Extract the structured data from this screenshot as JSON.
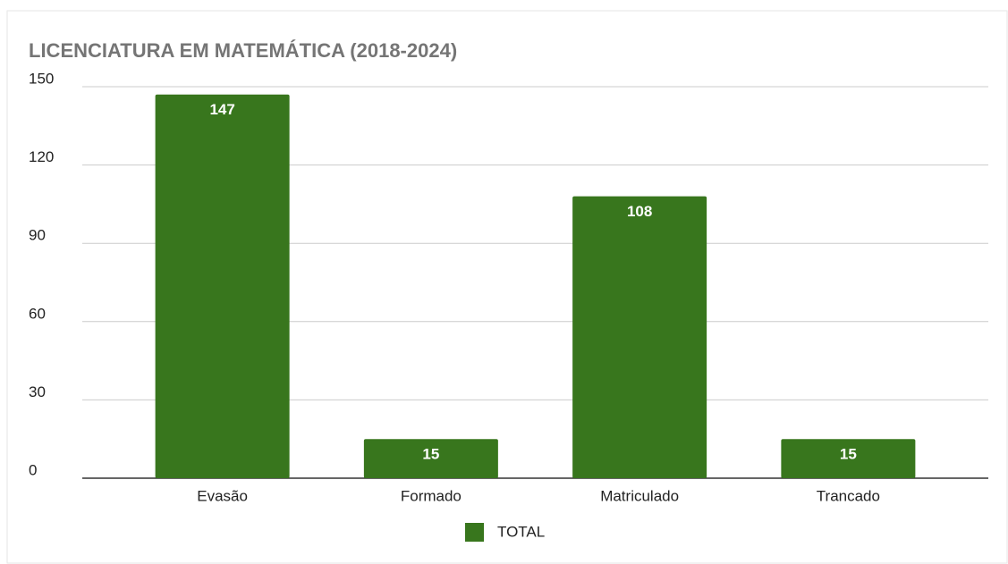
{
  "chart_data": {
    "type": "bar",
    "title": "LICENCIATURA EM MATEMÁTICA (2018-2024)",
    "categories": [
      "Evasão",
      "Formado",
      "Matriculado",
      "Trancado"
    ],
    "series": [
      {
        "name": "TOTAL",
        "color": "#38761d",
        "values": [
          147,
          15,
          108,
          15
        ]
      }
    ],
    "ylim": [
      0,
      150
    ],
    "yticks": [
      0,
      30,
      60,
      90,
      120,
      150
    ],
    "grid": true,
    "legend": "bottom"
  }
}
